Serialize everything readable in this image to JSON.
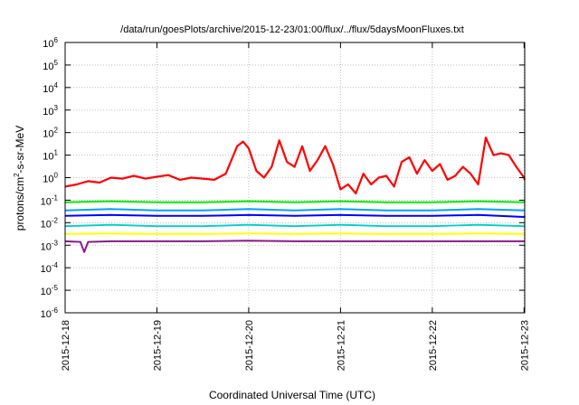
{
  "chart_data": {
    "type": "line",
    "title": "/data/run/goesPlots/archive/2015-12-23/01:00/flux/../flux/5daysMoonFluxes.txt",
    "xlabel": "Coordinated Universal Time (UTC)",
    "ylabel": {
      "base": "protons/cm",
      "sup": "2",
      "rest": "-s-sr-MeV"
    },
    "yscale": "log",
    "ylim": [
      1e-06,
      1000000.0
    ],
    "yticks": [
      {
        "value": -6,
        "base": "10",
        "exp": "-6"
      },
      {
        "value": -5,
        "base": "10",
        "exp": "-5"
      },
      {
        "value": -4,
        "base": "10",
        "exp": "-4"
      },
      {
        "value": -3,
        "base": "10",
        "exp": "-3"
      },
      {
        "value": -2,
        "base": "10",
        "exp": "-2"
      },
      {
        "value": -1,
        "base": "10",
        "exp": "-1"
      },
      {
        "value": 0,
        "base": "10",
        "exp": "0"
      },
      {
        "value": 1,
        "base": "10",
        "exp": "1"
      },
      {
        "value": 2,
        "base": "10",
        "exp": "2"
      },
      {
        "value": 3,
        "base": "10",
        "exp": "3"
      },
      {
        "value": 4,
        "base": "10",
        "exp": "4"
      },
      {
        "value": 5,
        "base": "10",
        "exp": "5"
      },
      {
        "value": 6,
        "base": "10",
        "exp": "6"
      }
    ],
    "xlim": [
      "2015-12-18T00:00",
      "2015-12-23T00:10"
    ],
    "xticks": [
      "2015-12-18",
      "2015-12-19",
      "2015-12-20",
      "2015-12-21",
      "2015-12-22",
      "2015-12-23"
    ],
    "grid": true,
    "series": [
      {
        "color": "#ff0000",
        "width": 2.2,
        "x": [
          "2015-12-18T00:00",
          "2015-12-18T03:00",
          "2015-12-18T06:00",
          "2015-12-18T09:00",
          "2015-12-18T12:00",
          "2015-12-18T15:00",
          "2015-12-18T18:00",
          "2015-12-18T21:00",
          "2015-12-19T00:00",
          "2015-12-19T03:00",
          "2015-12-19T06:00",
          "2015-12-19T09:00",
          "2015-12-19T12:00",
          "2015-12-19T15:00",
          "2015-12-19T18:00",
          "2015-12-19T21:00",
          "2015-12-19T22:30",
          "2015-12-20T00:00",
          "2015-12-20T02:00",
          "2015-12-20T04:00",
          "2015-12-20T06:00",
          "2015-12-20T08:00",
          "2015-12-20T10:00",
          "2015-12-20T12:00",
          "2015-12-20T14:00",
          "2015-12-20T16:00",
          "2015-12-20T18:00",
          "2015-12-20T20:00",
          "2015-12-20T22:00",
          "2015-12-21T00:00",
          "2015-12-21T02:00",
          "2015-12-21T04:00",
          "2015-12-21T06:00",
          "2015-12-21T08:00",
          "2015-12-21T10:00",
          "2015-12-21T12:00",
          "2015-12-21T14:00",
          "2015-12-21T16:00",
          "2015-12-21T18:00",
          "2015-12-21T20:00",
          "2015-12-21T22:00",
          "2015-12-22T00:00",
          "2015-12-22T02:00",
          "2015-12-22T04:00",
          "2015-12-22T06:00",
          "2015-12-22T08:00",
          "2015-12-22T10:00",
          "2015-12-22T12:00",
          "2015-12-22T14:00",
          "2015-12-22T16:00",
          "2015-12-22T18:00",
          "2015-12-22T20:00",
          "2015-12-22T22:00",
          "2015-12-23T00:00",
          "2015-12-23T00:10"
        ],
        "y": [
          0.4,
          0.5,
          0.7,
          0.6,
          1.0,
          0.9,
          1.2,
          0.9,
          1.1,
          1.3,
          0.8,
          1.0,
          0.9,
          0.8,
          1.5,
          25,
          40,
          20,
          2,
          1.0,
          3,
          45,
          5,
          3,
          25,
          2,
          6,
          25,
          4,
          0.3,
          0.5,
          0.2,
          1.5,
          0.5,
          1.0,
          1.2,
          0.4,
          5,
          8,
          1.5,
          6,
          2,
          4,
          0.8,
          1.2,
          3,
          1.5,
          0.5,
          60,
          10,
          12,
          10,
          3,
          1.0,
          0.8
        ]
      },
      {
        "color": "#00ee00",
        "width": 2.0,
        "x": [
          "2015-12-18T00:00",
          "2015-12-18T12:00",
          "2015-12-19T00:00",
          "2015-12-19T12:00",
          "2015-12-20T00:00",
          "2015-12-20T12:00",
          "2015-12-21T00:00",
          "2015-12-21T12:00",
          "2015-12-22T00:00",
          "2015-12-22T12:00",
          "2015-12-23T00:00",
          "2015-12-23T00:10"
        ],
        "y": [
          0.08,
          0.09,
          0.08,
          0.08,
          0.09,
          0.08,
          0.09,
          0.08,
          0.08,
          0.09,
          0.08,
          0.09
        ]
      },
      {
        "color": "#00a0ff",
        "width": 2.0,
        "x": [
          "2015-12-18T00:00",
          "2015-12-18T12:00",
          "2015-12-19T00:00",
          "2015-12-19T12:00",
          "2015-12-20T00:00",
          "2015-12-20T12:00",
          "2015-12-21T00:00",
          "2015-12-21T12:00",
          "2015-12-22T00:00",
          "2015-12-22T12:00",
          "2015-12-23T00:00",
          "2015-12-23T00:10"
        ],
        "y": [
          0.035,
          0.04,
          0.035,
          0.035,
          0.04,
          0.035,
          0.04,
          0.035,
          0.035,
          0.04,
          0.035,
          0.035
        ]
      },
      {
        "color": "#0000ff",
        "width": 2.0,
        "x": [
          "2015-12-18T00:00",
          "2015-12-18T12:00",
          "2015-12-19T00:00",
          "2015-12-19T12:00",
          "2015-12-20T00:00",
          "2015-12-20T12:00",
          "2015-12-21T00:00",
          "2015-12-21T12:00",
          "2015-12-22T00:00",
          "2015-12-22T12:00",
          "2015-12-23T00:00",
          "2015-12-23T00:10"
        ],
        "y": [
          0.02,
          0.022,
          0.02,
          0.02,
          0.022,
          0.02,
          0.022,
          0.02,
          0.02,
          0.022,
          0.018,
          0.02
        ]
      },
      {
        "color": "#00cccc",
        "width": 1.8,
        "x": [
          "2015-12-18T00:00",
          "2015-12-18T12:00",
          "2015-12-19T00:00",
          "2015-12-19T12:00",
          "2015-12-20T00:00",
          "2015-12-20T12:00",
          "2015-12-21T00:00",
          "2015-12-21T12:00",
          "2015-12-22T00:00",
          "2015-12-22T12:00",
          "2015-12-23T00:00",
          "2015-12-23T00:10"
        ],
        "y": [
          0.007,
          0.008,
          0.007,
          0.007,
          0.008,
          0.007,
          0.008,
          0.007,
          0.007,
          0.008,
          0.007,
          0.007
        ]
      },
      {
        "color": "#ffff00",
        "width": 2.0,
        "x": [
          "2015-12-18T00:00",
          "2015-12-18T12:00",
          "2015-12-19T00:00",
          "2015-12-19T12:00",
          "2015-12-20T00:00",
          "2015-12-20T12:00",
          "2015-12-21T00:00",
          "2015-12-21T12:00",
          "2015-12-22T00:00",
          "2015-12-22T12:00",
          "2015-12-23T00:00",
          "2015-12-23T00:10"
        ],
        "y": [
          0.0032,
          0.0033,
          0.0032,
          0.0032,
          0.0033,
          0.0032,
          0.0033,
          0.0032,
          0.0032,
          0.0033,
          0.0032,
          0.0032
        ]
      },
      {
        "color": "#8b1a8b",
        "width": 2.0,
        "x": [
          "2015-12-18T00:00",
          "2015-12-18T04:00",
          "2015-12-18T05:00",
          "2015-12-18T06:00",
          "2015-12-18T12:00",
          "2015-12-19T00:00",
          "2015-12-19T12:00",
          "2015-12-20T00:00",
          "2015-12-20T12:00",
          "2015-12-21T00:00",
          "2015-12-21T12:00",
          "2015-12-22T00:00",
          "2015-12-22T12:00",
          "2015-12-23T00:00",
          "2015-12-23T00:10"
        ],
        "y": [
          0.0015,
          0.0014,
          0.0005,
          0.0014,
          0.0015,
          0.0015,
          0.0015,
          0.0016,
          0.0015,
          0.0015,
          0.0015,
          0.0015,
          0.0015,
          0.0015,
          0.0015
        ]
      }
    ]
  }
}
